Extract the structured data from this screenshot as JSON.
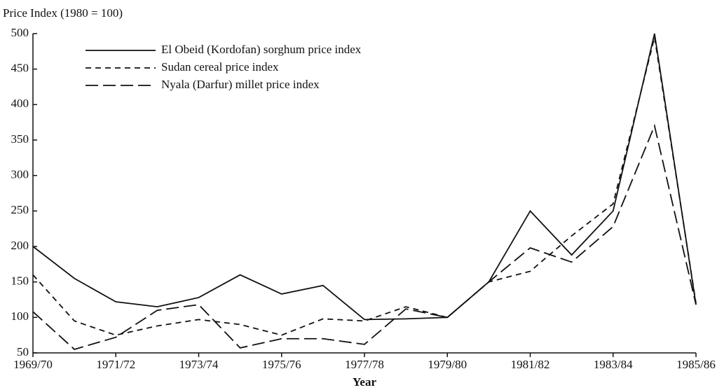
{
  "chart_data": {
    "type": "line",
    "title": "Price Index (1980 = 100)",
    "x_label": "Year",
    "categories": [
      "1969/70",
      null,
      "1971/72",
      null,
      "1973/74",
      null,
      "1975/76",
      null,
      "1977/78",
      null,
      "1979/80",
      null,
      "1981/82",
      null,
      "1983/84",
      null,
      "1985/86"
    ],
    "series": [
      {
        "name": "El Obeid (Kordofan) sorghum price index",
        "color": "#111111",
        "dash": "solid",
        "values": [
          200,
          155,
          122,
          115,
          128,
          160,
          133,
          145,
          97,
          98,
          100,
          150,
          250,
          188,
          250,
          500,
          118
        ]
      },
      {
        "name": "Sudan cereal price index",
        "color": "#111111",
        "dash": "short",
        "values": [
          160,
          95,
          75,
          88,
          97,
          90,
          75,
          98,
          95,
          115,
          100,
          150,
          165,
          215,
          260,
          495,
          120
        ]
      },
      {
        "name": "Nyala (Darfur) millet price index",
        "color": "#111111",
        "dash": "long",
        "values": [
          108,
          55,
          72,
          110,
          118,
          57,
          70,
          70,
          62,
          112,
          100,
          150,
          198,
          178,
          228,
          370,
          118
        ]
      }
    ],
    "ylim": [
      50,
      500
    ],
    "yticks": [
      50,
      100,
      150,
      200,
      250,
      300,
      350,
      400,
      450,
      500
    ],
    "grid": false,
    "legend": "upper left"
  }
}
